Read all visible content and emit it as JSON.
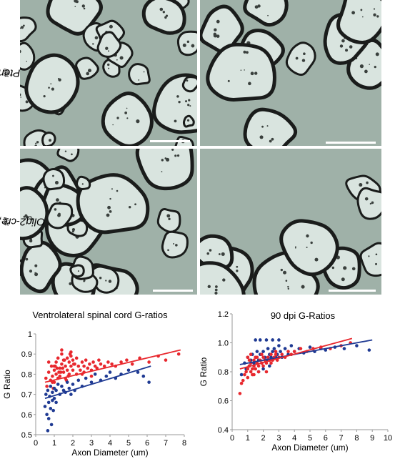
{
  "row_labels": {
    "top": {
      "main": "Pten",
      "sup": "fl/fl"
    },
    "bottom": {
      "main": "Olig2-cre, Pten",
      "sup": "fl/fl"
    }
  },
  "colors": {
    "series_red": "#e8282e",
    "series_blue": "#1f3a93",
    "micro_bg": "#9fb1a8",
    "myelin": "#1a1c1b",
    "axoplasm": "#d9e4df"
  },
  "chart_data": [
    {
      "type": "scatter",
      "title": "Ventrolateral spinal cord G-ratios",
      "xlabel": "Axon Diameter (um)",
      "ylabel": "G Ratio",
      "xlim": [
        0,
        8
      ],
      "ylim": [
        0.5,
        1.0
      ],
      "xticks": [
        "0",
        "1",
        "2",
        "3",
        "4",
        "5",
        "6",
        "7",
        "8"
      ],
      "yticks": [
        "0.5",
        "0.6",
        "0.7",
        "0.8",
        "0.9",
        "1"
      ],
      "grid": false,
      "series": [
        {
          "color": "#e8282e",
          "trend": [
            [
              0.5,
              0.76
            ],
            [
              7.8,
              0.92
            ]
          ],
          "x": [
            0.55,
            0.6,
            0.7,
            0.8,
            0.85,
            0.9,
            1.0,
            1.0,
            1.1,
            1.1,
            1.2,
            1.2,
            1.3,
            1.3,
            1.4,
            1.4,
            1.5,
            1.5,
            1.6,
            1.6,
            1.7,
            1.7,
            1.8,
            1.8,
            1.9,
            1.9,
            2.0,
            2.0,
            2.1,
            2.2,
            2.2,
            2.3,
            2.4,
            2.5,
            2.5,
            2.6,
            2.7,
            2.8,
            2.9,
            3.0,
            3.1,
            3.2,
            3.3,
            3.4,
            3.5,
            3.7,
            3.9,
            4.1,
            4.3,
            4.6,
            4.9,
            5.2,
            5.6,
            6.1,
            6.6,
            7.0,
            7.7,
            0.7,
            0.9,
            1.05,
            1.25,
            1.45,
            1.65,
            1.85,
            2.05,
            1.15,
            1.35,
            1.55,
            1.75,
            0.95,
            2.6,
            3.0,
            1.4,
            1.0,
            1.9
          ],
          "y": [
            0.78,
            0.74,
            0.81,
            0.77,
            0.84,
            0.79,
            0.82,
            0.76,
            0.86,
            0.8,
            0.78,
            0.88,
            0.83,
            0.79,
            0.85,
            0.9,
            0.81,
            0.87,
            0.84,
            0.78,
            0.88,
            0.82,
            0.86,
            0.8,
            0.84,
            0.89,
            0.82,
            0.87,
            0.85,
            0.8,
            0.88,
            0.84,
            0.82,
            0.86,
            0.8,
            0.84,
            0.87,
            0.83,
            0.85,
            0.82,
            0.86,
            0.84,
            0.83,
            0.87,
            0.85,
            0.84,
            0.86,
            0.85,
            0.84,
            0.86,
            0.87,
            0.85,
            0.88,
            0.86,
            0.89,
            0.87,
            0.9,
            0.86,
            0.76,
            0.84,
            0.81,
            0.83,
            0.77,
            0.9,
            0.85,
            0.83,
            0.81,
            0.87,
            0.79,
            0.73,
            0.81,
            0.79,
            0.92,
            0.84,
            0.91
          ]
        },
        {
          "color": "#1f3a93",
          "trend": [
            [
              0.5,
              0.68
            ],
            [
              6.2,
              0.84
            ]
          ],
          "x": [
            0.5,
            0.55,
            0.6,
            0.65,
            0.7,
            0.7,
            0.75,
            0.8,
            0.8,
            0.9,
            0.9,
            1.0,
            1.0,
            1.1,
            1.1,
            1.2,
            1.3,
            1.4,
            1.5,
            1.6,
            1.7,
            1.8,
            1.9,
            2.0,
            2.1,
            2.3,
            2.5,
            2.7,
            3.0,
            3.2,
            3.5,
            3.8,
            4.0,
            4.3,
            4.6,
            5.0,
            5.5,
            5.8,
            6.1,
            0.65,
            0.85,
            0.95
          ],
          "y": [
            0.64,
            0.7,
            0.6,
            0.72,
            0.66,
            0.58,
            0.69,
            0.74,
            0.63,
            0.71,
            0.67,
            0.73,
            0.68,
            0.72,
            0.66,
            0.75,
            0.7,
            0.74,
            0.72,
            0.71,
            0.76,
            0.73,
            0.7,
            0.75,
            0.72,
            0.77,
            0.74,
            0.78,
            0.76,
            0.8,
            0.77,
            0.79,
            0.81,
            0.78,
            0.8,
            0.82,
            0.81,
            0.79,
            0.76,
            0.52,
            0.55,
            0.62
          ]
        }
      ]
    },
    {
      "type": "scatter",
      "title": "90 dpi G-Ratios",
      "xlabel": "Axon Diameter (um)",
      "ylabel": "G Ratio",
      "xlim": [
        0,
        10
      ],
      "ylim": [
        0.4,
        1.2
      ],
      "xticks": [
        "0",
        "1",
        "2",
        "3",
        "4",
        "5",
        "6",
        "7",
        "8",
        "9",
        "10"
      ],
      "yticks": [
        "0.4",
        "0.6",
        "0.8",
        "1.0",
        "1.2"
      ],
      "grid": false,
      "series": [
        {
          "color": "#1f3a93",
          "trend": [
            [
              0.5,
              0.85
            ],
            [
              9.0,
              1.02
            ]
          ],
          "x": [
            0.6,
            0.8,
            0.9,
            1.0,
            1.1,
            1.2,
            1.3,
            1.4,
            1.5,
            1.6,
            1.7,
            1.8,
            1.9,
            2.0,
            2.1,
            2.2,
            2.3,
            2.4,
            2.5,
            2.6,
            2.7,
            2.8,
            2.9,
            3.0,
            3.1,
            3.2,
            3.4,
            3.6,
            3.8,
            4.0,
            4.3,
            4.6,
            5.0,
            5.3,
            5.7,
            6.0,
            6.6,
            7.2,
            8.0,
            8.8,
            1.5,
            1.8,
            2.2,
            2.6,
            3.0,
            1.7,
            2.0,
            2.4
          ],
          "y": [
            0.78,
            0.86,
            0.82,
            0.9,
            0.84,
            0.88,
            0.92,
            0.86,
            0.9,
            0.94,
            0.88,
            0.92,
            0.86,
            0.94,
            0.9,
            0.88,
            0.96,
            0.92,
            0.9,
            0.94,
            0.96,
            0.9,
            0.92,
            0.98,
            0.94,
            0.9,
            0.96,
            0.92,
            0.98,
            0.94,
            0.96,
            0.93,
            0.97,
            0.94,
            0.96,
            0.95,
            0.97,
            0.96,
            0.98,
            0.95,
            1.02,
            1.02,
            1.02,
            1.02,
            1.02,
            0.8,
            0.82,
            0.84
          ]
        },
        {
          "color": "#e8282e",
          "trend": [
            [
              0.5,
              0.82
            ],
            [
              7.7,
              1.03
            ]
          ],
          "x": [
            0.5,
            0.6,
            0.7,
            0.8,
            0.9,
            1.0,
            1.0,
            1.1,
            1.2,
            1.2,
            1.3,
            1.4,
            1.4,
            1.5,
            1.6,
            1.6,
            1.7,
            1.8,
            1.9,
            2.0,
            2.0,
            2.1,
            2.2,
            2.3,
            2.4,
            2.5,
            2.6,
            2.7,
            2.8,
            2.9,
            3.0,
            3.2,
            3.4,
            3.6,
            3.8,
            4.0,
            4.4,
            4.8,
            5.2,
            5.7,
            6.3,
            7.0,
            7.6,
            1.1,
            1.3,
            1.5,
            1.7,
            1.9,
            2.2,
            2.5,
            2.8,
            1.0,
            1.2,
            1.4
          ],
          "y": [
            0.65,
            0.72,
            0.74,
            0.78,
            0.8,
            0.82,
            0.76,
            0.84,
            0.8,
            0.86,
            0.82,
            0.84,
            0.88,
            0.82,
            0.86,
            0.9,
            0.84,
            0.88,
            0.86,
            0.9,
            0.84,
            0.88,
            0.86,
            0.9,
            0.88,
            0.92,
            0.88,
            0.9,
            0.92,
            0.88,
            0.9,
            0.92,
            0.9,
            0.94,
            0.92,
            0.94,
            0.96,
            0.94,
            0.96,
            0.97,
            0.96,
            0.98,
            1.0,
            0.88,
            0.78,
            0.9,
            0.8,
            0.92,
            0.8,
            0.86,
            0.94,
            0.9,
            0.92,
            0.78
          ]
        }
      ]
    }
  ]
}
